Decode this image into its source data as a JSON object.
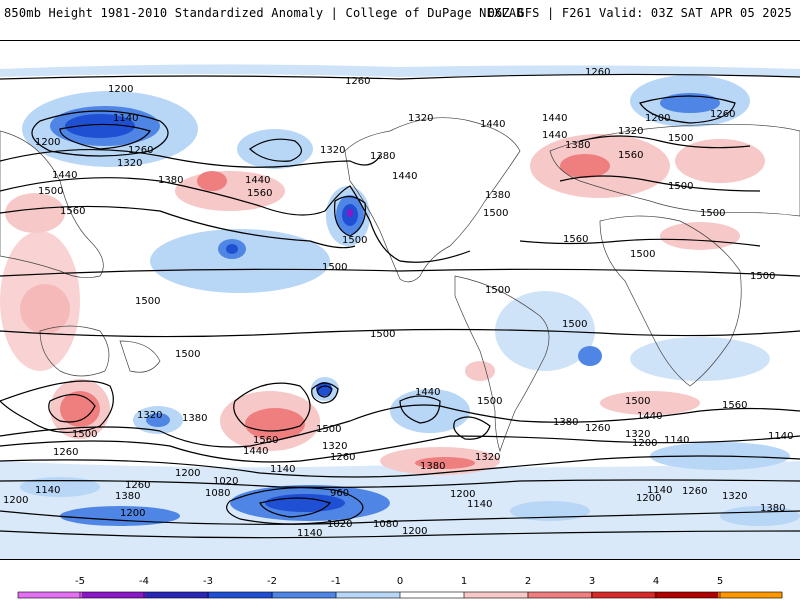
{
  "header": {
    "title": "850mb Height 1981-2010 Standardized Anomaly | College of DuPage NEXLAB",
    "run_info": "06Z GFS | F261 Valid: 03Z SAT APR 05 2025"
  },
  "map": {
    "contour_labels": [
      "1200",
      "1260",
      "1140",
      "1320",
      "1380",
      "1440",
      "1500",
      "1560",
      "960",
      "1020",
      "1080"
    ]
  },
  "legend": {
    "ticks": [
      "-5",
      "-4",
      "-3",
      "-2",
      "-1",
      "0",
      "1",
      "2",
      "3",
      "4",
      "5"
    ],
    "colors": [
      "#e36ff2",
      "#8a18c6",
      "#2a27b7",
      "#1f4fd2",
      "#4f86e6",
      "#b8d6f6",
      "#ffffff",
      "#f7c8c8",
      "#ef7f7f",
      "#d62a2a",
      "#b00000",
      "#ff9800"
    ]
  }
}
